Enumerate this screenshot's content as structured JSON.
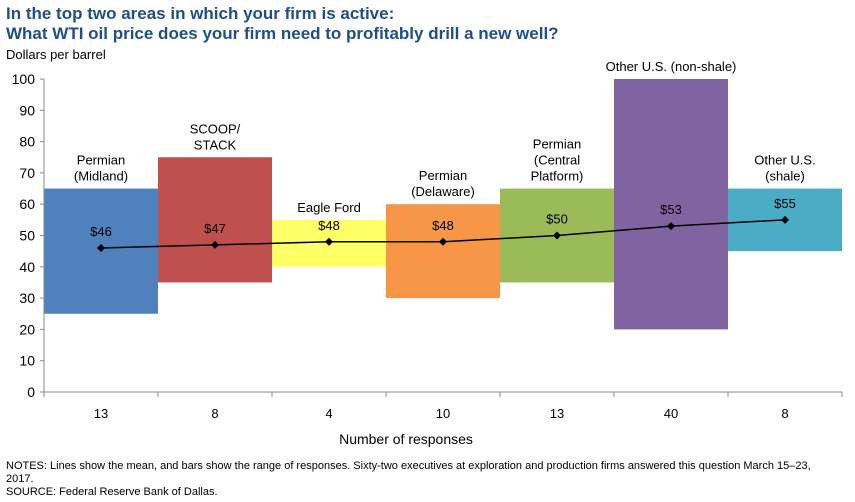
{
  "chart_data": {
    "type": "bar",
    "title_lines": [
      "In the top two areas in which your firm is active:",
      "What WTI oil price does your firm need to profitably drill a new well?"
    ],
    "ylabel": "Dollars per barrel",
    "xlabel": "Number of responses",
    "ylim": [
      0,
      100
    ],
    "yticks": [
      0,
      10,
      20,
      30,
      40,
      50,
      60,
      70,
      80,
      90,
      100
    ],
    "grid": false,
    "categories": [
      {
        "label": [
          "Permian",
          "(Midland)"
        ],
        "responses": "13",
        "low": 25,
        "high": 65,
        "mean": 46,
        "mean_label": "$46",
        "color": "#4f81bd"
      },
      {
        "label": [
          "SCOOP/",
          "STACK"
        ],
        "responses": "8",
        "low": 35,
        "high": 75,
        "mean": 47,
        "mean_label": "$47",
        "color": "#c0504d"
      },
      {
        "label": [
          "Eagle Ford"
        ],
        "responses": "4",
        "low": 40,
        "high": 55,
        "mean": 48,
        "mean_label": "$48",
        "color": "#ffff66"
      },
      {
        "label": [
          "Permian",
          "(Delaware)"
        ],
        "responses": "10",
        "low": 30,
        "high": 60,
        "mean": 48,
        "mean_label": "$48",
        "color": "#f79646"
      },
      {
        "label": [
          "Permian",
          "(Central",
          "Platform)"
        ],
        "responses": "13",
        "low": 35,
        "high": 65,
        "mean": 50,
        "mean_label": "$50",
        "color": "#9bbb59"
      },
      {
        "label": [
          "Other U.S. (non-shale)"
        ],
        "responses": "40",
        "low": 20,
        "high": 100,
        "mean": 53,
        "mean_label": "$53",
        "color": "#8064a2"
      },
      {
        "label": [
          "Other U.S.",
          "(shale)"
        ],
        "responses": "8",
        "low": 45,
        "high": 65,
        "mean": 55,
        "mean_label": "$55",
        "color": "#4bacc6"
      }
    ]
  },
  "notes": [
    "NOTES: Lines show the mean, and bars show the range of responses. Sixty-two executives at exploration and production firms answered this question March 15–23,",
    "2017."
  ],
  "source": "SOURCE: Federal Reserve Bank of Dallas."
}
